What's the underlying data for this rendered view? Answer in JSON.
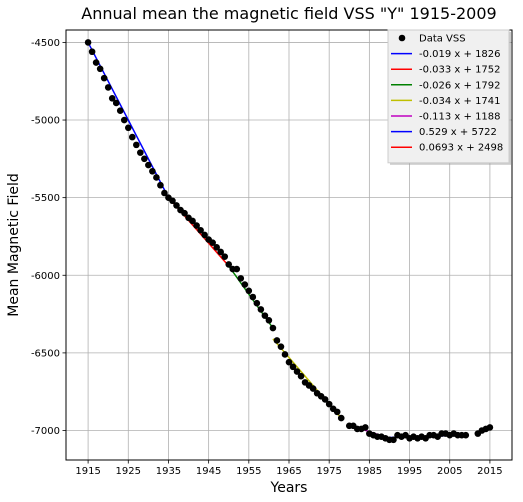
{
  "chart_data": {
    "type": "scatter",
    "title": "Annual mean the magnetic field VSS \"Y\" 1915-2009",
    "xlabel": "Years",
    "ylabel": "Mean Magnetic Field",
    "xlim": [
      1909.5,
      2020.5
    ],
    "ylim": [
      -7190,
      -4420
    ],
    "x_ticks": [
      "1915",
      "1925",
      "1935",
      "1945",
      "1955",
      "1965",
      "1975",
      "1985",
      "1995",
      "2005",
      "2015"
    ],
    "y_ticks": [
      "-4500",
      "-5000",
      "-5500",
      "-6000",
      "-6500",
      "-7000"
    ],
    "grid": true,
    "legend_position": "top-right",
    "scatter": {
      "name": "Data VSS",
      "color": "#000000",
      "x": [
        1915,
        1916,
        1917,
        1918,
        1919,
        1920,
        1921,
        1922,
        1923,
        1924,
        1925,
        1926,
        1927,
        1928,
        1929,
        1930,
        1931,
        1932,
        1933,
        1934,
        1935,
        1936,
        1937,
        1938,
        1939,
        1940,
        1941,
        1942,
        1943,
        1944,
        1945,
        1946,
        1947,
        1948,
        1949,
        1950,
        1951,
        1952,
        1953,
        1954,
        1955,
        1956,
        1957,
        1958,
        1959,
        1960,
        1961,
        1962,
        1963,
        1964,
        1965,
        1966,
        1967,
        1968,
        1969,
        1970,
        1971,
        1972,
        1973,
        1974,
        1975,
        1976,
        1977,
        1978,
        1980,
        1981,
        1982,
        1983,
        1984,
        1985,
        1986,
        1987,
        1988,
        1989,
        1990,
        1991,
        1992,
        1993,
        1994,
        1995,
        1996,
        1997,
        1998,
        1999,
        2000,
        2001,
        2002,
        2003,
        2004,
        2005,
        2006,
        2007,
        2008,
        2009,
        2012,
        2013,
        2014,
        2015
      ],
      "y": [
        -4500,
        -4560,
        -4630,
        -4670,
        -4730,
        -4790,
        -4860,
        -4890,
        -4940,
        -5000,
        -5050,
        -5110,
        -5160,
        -5210,
        -5250,
        -5290,
        -5330,
        -5370,
        -5420,
        -5470,
        -5500,
        -5520,
        -5550,
        -5580,
        -5600,
        -5630,
        -5650,
        -5680,
        -5710,
        -5740,
        -5770,
        -5790,
        -5820,
        -5850,
        -5880,
        -5930,
        -5960,
        -5960,
        -6020,
        -6060,
        -6100,
        -6140,
        -6180,
        -6220,
        -6260,
        -6290,
        -6340,
        -6420,
        -6460,
        -6510,
        -6560,
        -6590,
        -6620,
        -6650,
        -6690,
        -6710,
        -6730,
        -6760,
        -6780,
        -6800,
        -6830,
        -6860,
        -6880,
        -6920,
        -6970,
        -6970,
        -6990,
        -6990,
        -6980,
        -7020,
        -7030,
        -7040,
        -7040,
        -7050,
        -7060,
        -7060,
        -7030,
        -7040,
        -7030,
        -7050,
        -7040,
        -7050,
        -7040,
        -7050,
        -7030,
        -7030,
        -7040,
        -7020,
        -7020,
        -7030,
        -7020,
        -7030,
        -7030,
        -7030,
        -7020,
        -7000,
        -6990,
        -6980
      ]
    },
    "series": [
      {
        "name": "-0.019 x + 1826",
        "color": "#0000ff",
        "x": [
          1915,
          1935
        ],
        "y": [
          -4500,
          -5500
        ]
      },
      {
        "name": "-0.033 x + 1752",
        "color": "#ff0000",
        "x": [
          1935,
          1950
        ],
        "y": [
          -5500,
          -5940
        ]
      },
      {
        "name": "-0.026 x + 1792",
        "color": "#008000",
        "x": [
          1950,
          1961
        ],
        "y": [
          -5940,
          -6340
        ]
      },
      {
        "name": "-0.034 x + 1741",
        "color": "#bfbf00",
        "x": [
          1961,
          1978
        ],
        "y": [
          -6410,
          -6920
        ]
      },
      {
        "name": "-0.113 x + 1188",
        "color": "#bf00bf",
        "x": [
          1980,
          1990
        ],
        "y": [
          -6965,
          -7050
        ]
      },
      {
        "name": "0.529 x + 5722",
        "color": "#0000ff",
        "x": [
          1990,
          2009
        ],
        "y": [
          -7045,
          -7030
        ]
      },
      {
        "name": "0.0693 x + 2498",
        "color": "#ff0000",
        "x": [
          2012,
          2015
        ],
        "y": [
          -7020,
          -6985
        ]
      }
    ]
  }
}
